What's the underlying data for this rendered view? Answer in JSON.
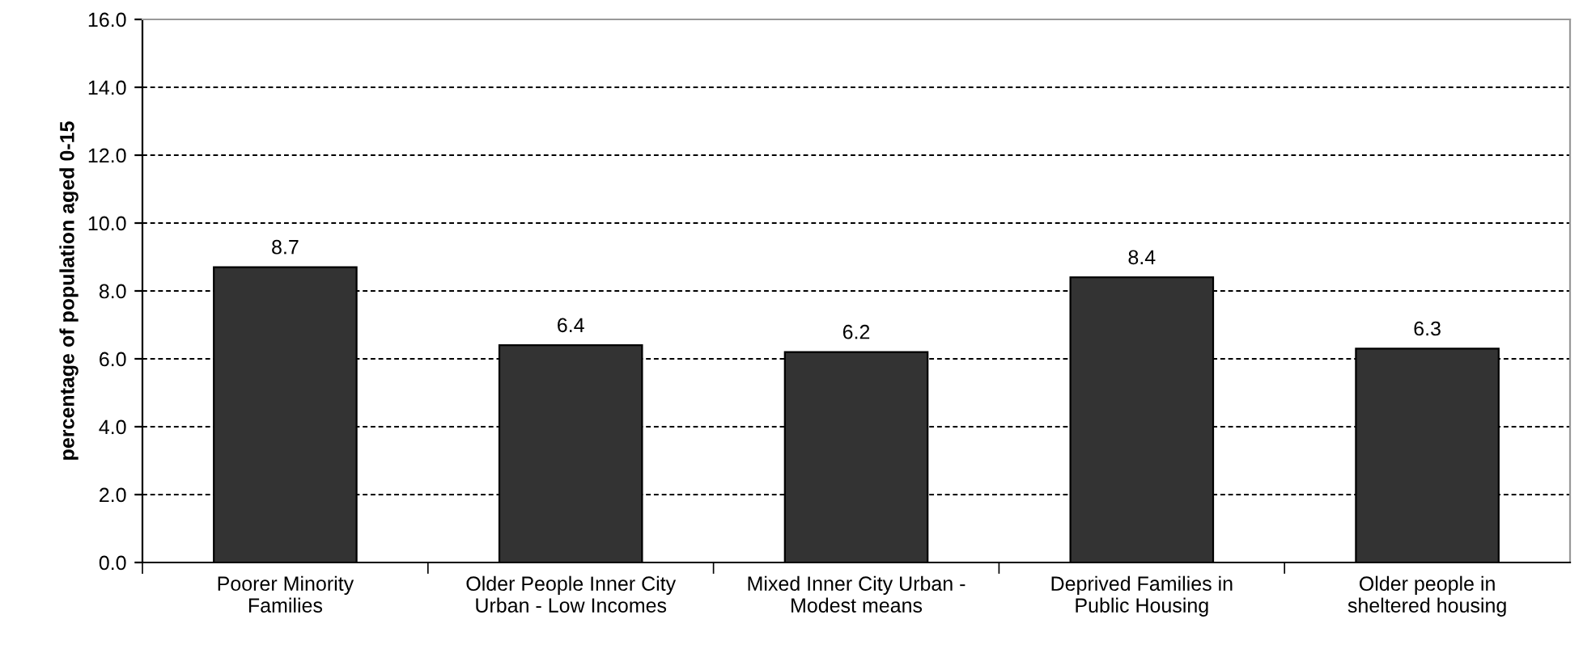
{
  "chart_data": {
    "type": "bar",
    "ylabel": "percentage of population aged 0-15",
    "categories": [
      "Poorer Minority\nFamilies",
      "Older People Inner City\nUrban - Low Incomes",
      "Mixed Inner City Urban -\nModest means",
      "Deprived Families in\nPublic Housing",
      "Older people in\nsheltered housing"
    ],
    "values": [
      8.7,
      6.4,
      6.2,
      8.4,
      6.3
    ],
    "color": "#333333",
    "ylim": [
      0,
      16
    ],
    "yticks": [
      {
        "value": 0,
        "label": "0.0"
      },
      {
        "value": 2,
        "label": "2.0"
      },
      {
        "value": 4,
        "label": "4.0"
      },
      {
        "value": 6,
        "label": "6.0"
      },
      {
        "value": 8,
        "label": "8.0"
      },
      {
        "value": 10,
        "label": "10.0"
      },
      {
        "value": 12,
        "label": "12.0"
      },
      {
        "value": 14,
        "label": "14.0"
      },
      {
        "value": 16,
        "label": "16.0"
      }
    ],
    "grid": "y",
    "data_labels": true,
    "legend": false
  }
}
